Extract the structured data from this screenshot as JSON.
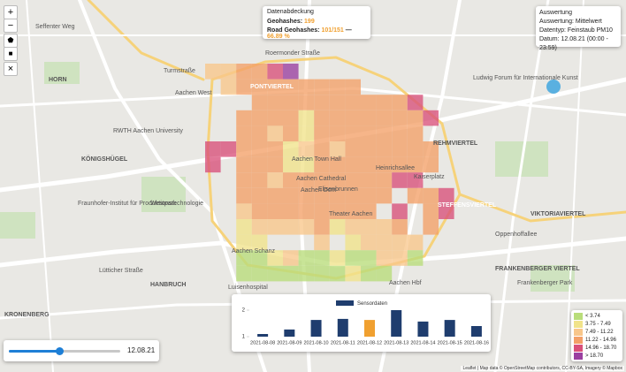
{
  "map_controls": {
    "zoom_in": "+",
    "zoom_out": "−",
    "close": "×"
  },
  "coverage": {
    "title": "Datenabdeckung",
    "geohashes_label": "Geohashes:",
    "geohashes": "199",
    "road_label": "Road Geohashes:",
    "road_count": "101/151",
    "separator": "—",
    "road_percent": "66.89 %"
  },
  "evaluation": {
    "title": "Auswertung",
    "lines": [
      "Auswertung: Mittelwert",
      "Datentyp: Feinstaub PM10",
      "Datum: 12.08.21 (00:00 - 23:59)"
    ]
  },
  "chart_data": {
    "type": "bar",
    "categories": [
      "2021-08-08",
      "2021-08-09",
      "2021-08-10",
      "2021-08-11",
      "2021-08-12",
      "2021-08-13",
      "2021-08-14",
      "2021-08-15",
      "2021-08-16"
    ],
    "series": [
      {
        "name": "Sensordaten",
        "color": "#1f3d6e",
        "values": [
          1.1,
          1.27,
          1.63,
          1.67,
          1.63,
          2.0,
          1.57,
          1.63,
          1.4
        ]
      }
    ],
    "bar_colors": [
      "#1f3d6e",
      "#1f3d6e",
      "#1f3d6e",
      "#1f3d6e",
      "#f0a030",
      "#1f3d6e",
      "#1f3d6e",
      "#1f3d6e",
      "#1f3d6e"
    ],
    "ylim": [
      1,
      2.2
    ],
    "yticks": [
      1,
      2
    ]
  },
  "slider": {
    "label": "12.08.21"
  },
  "legend": {
    "items": [
      {
        "label": "< 3.74",
        "color": "#b9dd7a"
      },
      {
        "label": "3.75 - 7.49",
        "color": "#f1e38a"
      },
      {
        "label": "7.49 - 11.22",
        "color": "#f8c68a"
      },
      {
        "label": "11.22 - 14.96",
        "color": "#f3a068"
      },
      {
        "label": "14.96 - 18.70",
        "color": "#d9507a"
      },
      {
        "label": "> 18.70",
        "color": "#9a3fa0"
      }
    ]
  },
  "attribution": "Leaflet | Map data © OpenStreetMap contributors, CC-BY-SA, Imagery © Mapbox",
  "map_labels": [
    "HORN",
    "PONTVIERTEL",
    "KÖNIGSHÜGEL",
    "HANBRUCH",
    "KRONENBERG",
    "STEFFENSVIERTEL",
    "VIKTORIAVIERTEL",
    "FRANKENBERGER VIERTEL",
    "REHMVIERTEL",
    "Aachen West",
    "Aachen Dom",
    "Aachen Cathedral",
    "Elisenbrunnen",
    "Aachen Town Hall",
    "Ludwig Forum für Internationale Kunst",
    "Aachen Schanz",
    "Aachen Hbf",
    "Fraunhofer-Institut für Produktionstechnologie",
    "RWTH Aachen University",
    "Westpark",
    "Seffenter Weg",
    "Turmstraße",
    "Heinrichsallee",
    "Oppenhoffallee",
    "Luisenhospital",
    "Kaiserplatz",
    "Theater Aachen",
    "Frankenberger Park",
    "Roermonder Straße",
    "Lütticher Straße"
  ]
}
